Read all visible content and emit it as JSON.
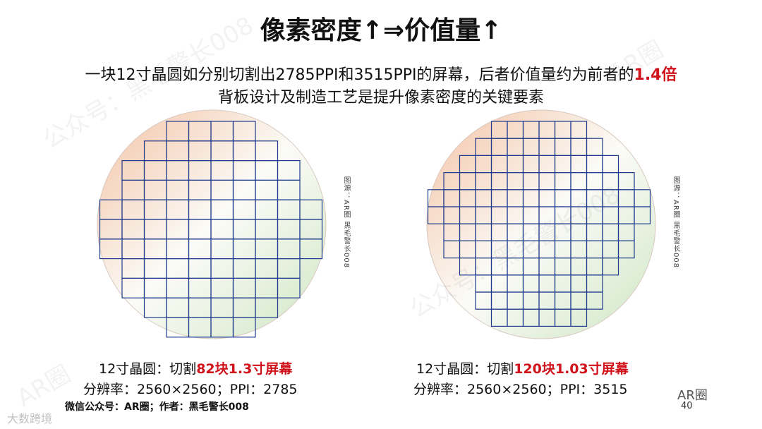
{
  "title": "像素密度↑⇒价值量↑",
  "subtitle": {
    "line1": "一块12寸晶圆如分别切割出2785PPI和3515PPI的屏幕，后者价值量约为前者的",
    "line1_highlight": "1.4倍",
    "line2": "背板设计及制造工艺是提升像素密度的关键要素"
  },
  "wafers": [
    {
      "caption_prefix": "12寸晶圆：切割",
      "caption_highlight": "82块1.3寸屏幕",
      "spec": "分辨率：2560×2560；PPI：2785",
      "source": "图源：AR圈 黑毛警长008"
    },
    {
      "caption_prefix": "12寸晶圆：切割",
      "caption_highlight": "120块1.03寸屏幕",
      "spec": "分辨率：2560×2560；PPI：3515",
      "source": "图源：AR圈 黑毛警长008"
    }
  ],
  "footer": "微信公众号：AR圈；作者：黑毛警长008",
  "logo": "AR圈",
  "page_number": "40",
  "watermarks": {
    "account": "公众号：黑毛警长008",
    "brand": "AR圈",
    "corner": "大数跨境"
  }
}
